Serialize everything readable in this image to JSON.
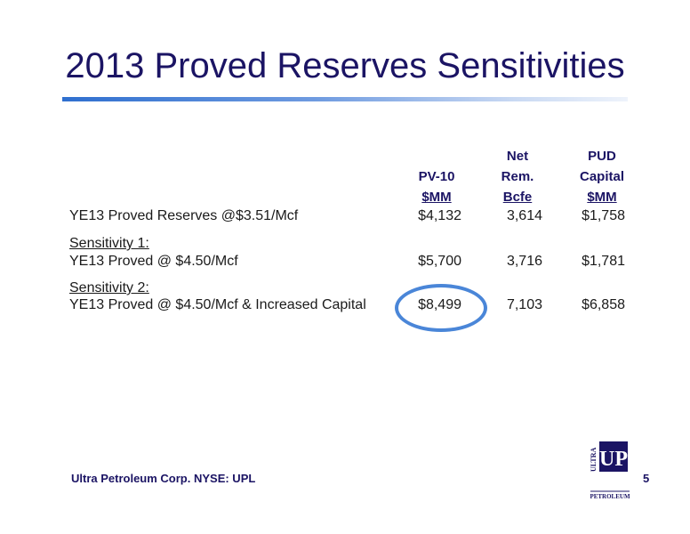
{
  "title": "2013 Proved Reserves Sensitivities",
  "columns": {
    "pv10": {
      "line1": "PV-10",
      "line2": "$MM"
    },
    "net": {
      "line1": "Net",
      "line2": "Rem.",
      "line3": "Bcfe"
    },
    "pud": {
      "line1": "PUD",
      "line2": "Capital",
      "line3": "$MM"
    }
  },
  "rows": [
    {
      "label": "YE13 Proved Reserves @$3.51/Mcf",
      "pv10": "$4,132",
      "net": "3,614",
      "pud": "$1,758"
    },
    {
      "heading": "Sensitivity 1:",
      "label": "YE13 Proved @ $4.50/Mcf",
      "pv10": "$5,700",
      "net": "3,716",
      "pud": "$1,781"
    },
    {
      "heading": "Sensitivity 2:",
      "label": "YE13 Proved @ $4.50/Mcf & Increased Capital",
      "pv10": "$8,499",
      "net": "7,103",
      "pud": "$6,858"
    }
  ],
  "footer": "Ultra Petroleum Corp. NYSE: UPL",
  "page_number": "5",
  "logo": {
    "letters": "UP",
    "vertical": "ULTRA",
    "bottom": "PETROLEUM"
  },
  "colors": {
    "title": "#1b1464",
    "accent": "#4a86d8"
  }
}
